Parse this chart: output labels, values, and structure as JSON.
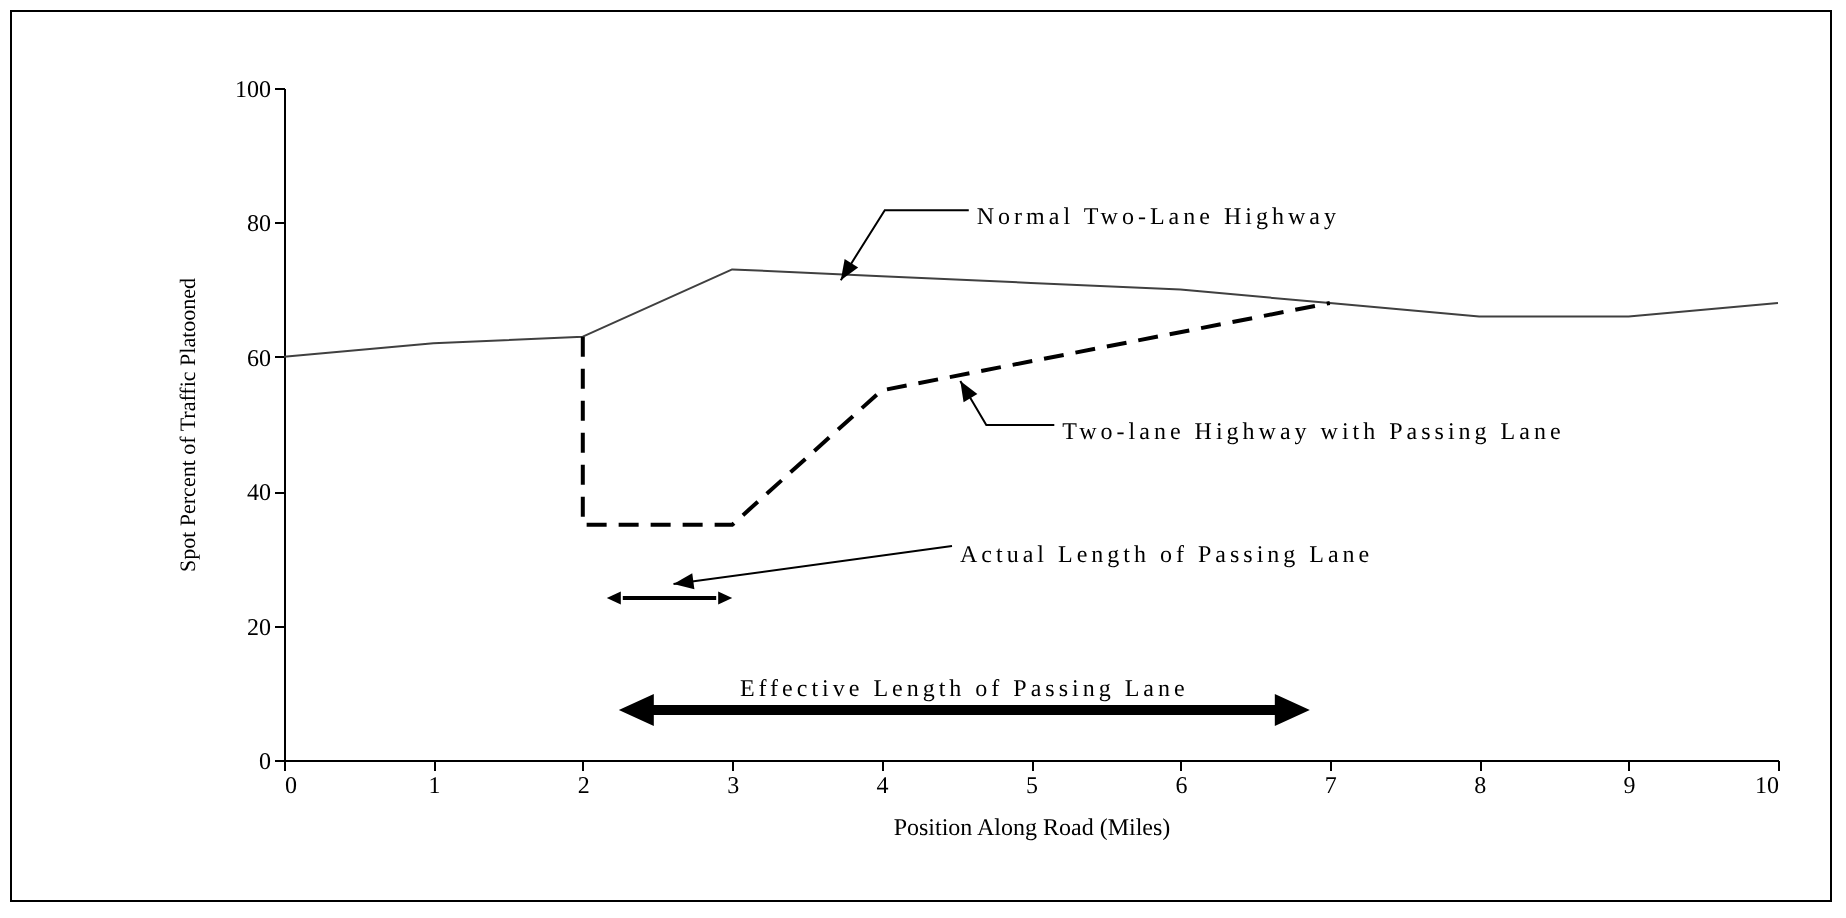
{
  "chart_data": {
    "type": "line",
    "xlabel": "Position Along Road (Miles)",
    "ylabel": "Spot Percent of Traffic Platooned",
    "xlim": [
      0,
      10
    ],
    "ylim": [
      0,
      100
    ],
    "xticks": [
      0,
      1,
      2,
      3,
      4,
      5,
      6,
      7,
      8,
      9,
      10
    ],
    "yticks": [
      0,
      20,
      40,
      60,
      80,
      100
    ],
    "grid": false,
    "marker": "none",
    "series": [
      {
        "color": "#404040",
        "line_style": "solid",
        "x": [
          0,
          1,
          2,
          3,
          4,
          5,
          6,
          7,
          8,
          9,
          10
        ],
        "values": [
          60,
          62,
          63,
          73,
          72,
          71,
          70,
          68,
          66,
          66,
          68
        ]
      },
      {
        "color": "#000000",
        "line_style": "dashed",
        "x": [
          2,
          2,
          3,
          4,
          7
        ],
        "values": [
          63,
          35,
          35,
          55,
          68
        ]
      }
    ],
    "annotations": [
      {
        "text": "Normal Two-Lane Highway",
        "x": 3.7,
        "y": 72
      },
      {
        "text": "Two-lane Highway with Passing Lane",
        "x": 4.5,
        "y": 57
      },
      "Actual Length of Passing Lane",
      "Effective Length of Passing Lane"
    ]
  }
}
